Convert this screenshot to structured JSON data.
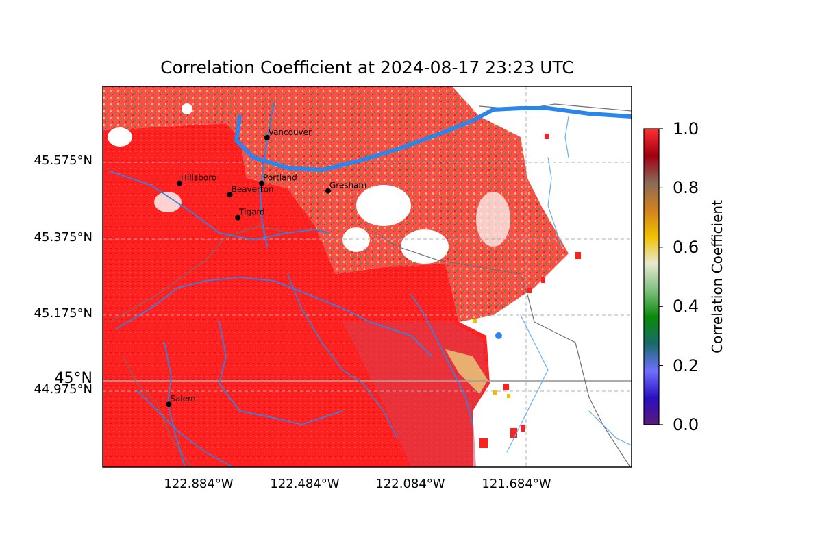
{
  "title": "Correlation Coefficient at 2024-08-17 23:23 UTC",
  "lat_labels": [
    "45.575°N",
    "45.375°N",
    "45.175°N",
    "44.975°N"
  ],
  "lat_major_label": "45°N",
  "lon_labels": [
    "122.884°W",
    "122.484°W",
    "122.084°W",
    "121.684°W"
  ],
  "colorbar": {
    "label": "Correlation Coefficient",
    "ticks": [
      "0.0",
      "0.2",
      "0.4",
      "0.6",
      "0.8",
      "1.0"
    ],
    "range": [
      0.0,
      1.0
    ],
    "colors": [
      "#5a1a7a",
      "#2a10c0",
      "#7070ff",
      "#1a6a6a",
      "#0a8a0a",
      "#80c080",
      "#e8e8d0",
      "#f0c000",
      "#d08020",
      "#8a6a5a",
      "#a00010",
      "#ff3030"
    ]
  },
  "cities": [
    {
      "name": "Vancouver",
      "lon": -122.66,
      "lat": 45.64
    },
    {
      "name": "Portland",
      "lon": -122.68,
      "lat": 45.52
    },
    {
      "name": "Hillsboro",
      "lon": -122.99,
      "lat": 45.52
    },
    {
      "name": "Beaverton",
      "lon": -122.8,
      "lat": 45.49
    },
    {
      "name": "Gresham",
      "lon": -122.43,
      "lat": 45.5
    },
    {
      "name": "Tigard",
      "lon": -122.77,
      "lat": 45.43
    },
    {
      "name": "Salem",
      "lon": -123.03,
      "lat": 44.94
    }
  ],
  "colors": {
    "dominant_echo": "#ff2020",
    "river": "#2a86e8",
    "boundary": "#707070",
    "gridline": "#b0b0b0"
  }
}
